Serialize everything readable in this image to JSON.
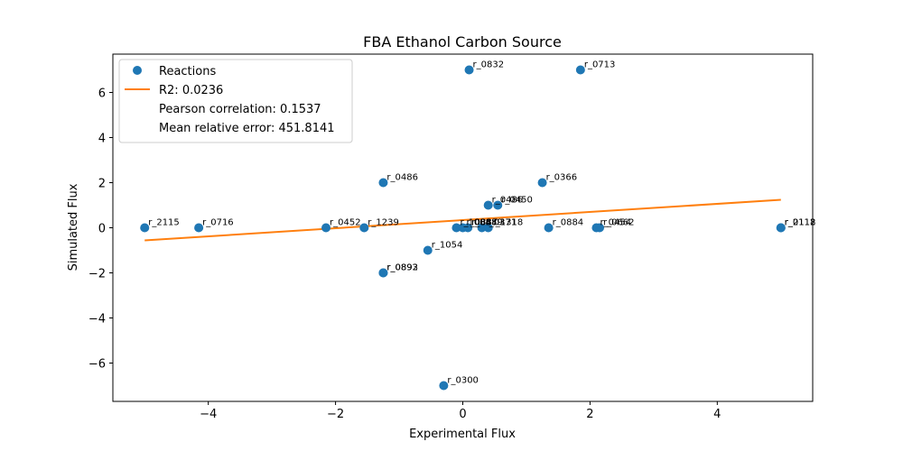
{
  "chart_data": {
    "type": "scatter",
    "title": "FBA Ethanol Carbon Source",
    "xlabel": "Experimental Flux",
    "ylabel": "Simulated Flux",
    "xlim": [
      -5.5,
      5.5
    ],
    "ylim": [
      -7.7,
      7.7
    ],
    "xticks": [
      -4,
      -2,
      0,
      2,
      4
    ],
    "yticks": [
      -6,
      -4,
      -2,
      0,
      2,
      4,
      6
    ],
    "grid": false,
    "legend_position": "top-left",
    "colors": {
      "points": "#1f77b4",
      "fit": "#ff7f0e"
    },
    "legend": {
      "points_label": "Reactions",
      "fit_label": "R2: 0.0236",
      "pearson": "Pearson correlation: 0.1537",
      "mre": "Mean relative error: 451.8141"
    },
    "fit_line": {
      "x": [
        -5.0,
        5.0
      ],
      "y": [
        -0.56,
        1.24
      ]
    },
    "points": [
      {
        "x": -5.0,
        "y": 0,
        "label": "r_2115"
      },
      {
        "x": -4.15,
        "y": 0,
        "label": "r_0716"
      },
      {
        "x": -2.15,
        "y": 0,
        "label": "r_0452"
      },
      {
        "x": -1.55,
        "y": 0,
        "label": "r_1239"
      },
      {
        "x": -1.25,
        "y": 2,
        "label": "r_0486"
      },
      {
        "x": -1.25,
        "y": -2,
        "label": "r_0893"
      },
      {
        "x": -1.25,
        "y": -2,
        "label": "r_0892"
      },
      {
        "x": -0.3,
        "y": -7,
        "label": "r_0300"
      },
      {
        "x": -0.55,
        "y": -1,
        "label": "r_1054"
      },
      {
        "x": 0.1,
        "y": 7,
        "label": "r_0832"
      },
      {
        "x": 1.85,
        "y": 7,
        "label": "r_0713"
      },
      {
        "x": 1.25,
        "y": 2,
        "label": "r_0366"
      },
      {
        "x": 0.4,
        "y": 1,
        "label": "r_0486"
      },
      {
        "x": 0.55,
        "y": 1,
        "label": "r_0450"
      },
      {
        "x": -0.1,
        "y": 0,
        "label": "r_1084"
      },
      {
        "x": 0.0,
        "y": 0,
        "label": "r_0887"
      },
      {
        "x": 0.08,
        "y": 0,
        "label": "r_0889"
      },
      {
        "x": 0.3,
        "y": 0,
        "label": "r_0371"
      },
      {
        "x": 0.4,
        "y": 0,
        "label": "r_1318"
      },
      {
        "x": 1.35,
        "y": 0,
        "label": "r_0884"
      },
      {
        "x": 2.1,
        "y": 0,
        "label": "r_0454"
      },
      {
        "x": 2.15,
        "y": 0,
        "label": "r_0662"
      },
      {
        "x": 5.0,
        "y": 0,
        "label": "r_0118"
      },
      {
        "x": 5.0,
        "y": 0,
        "label": "r_2112"
      }
    ]
  }
}
